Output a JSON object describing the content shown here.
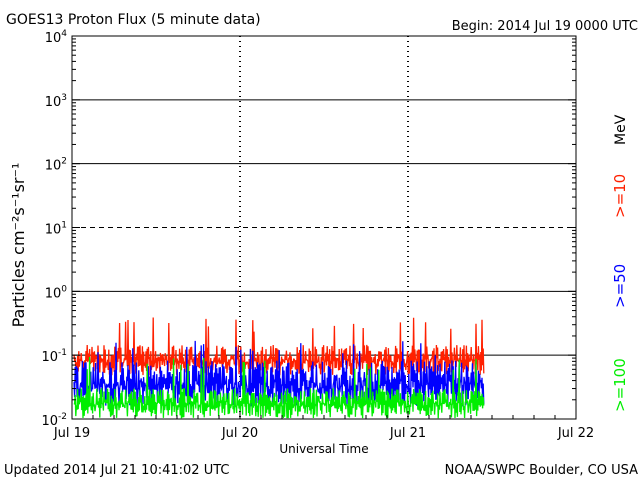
{
  "header": {
    "title": "GOES13 Proton Flux (5 minute data)",
    "begin": "Begin: 2014 Jul 19 0000 UTC"
  },
  "footer": {
    "updated": "Updated 2014 Jul 21 10:41:02 UTC",
    "source": "NOAA/SWPC Boulder, CO USA"
  },
  "chart_data": {
    "type": "line",
    "title": "GOES13 Proton Flux (5 minute data)",
    "xlabel": "Universal Time",
    "ylabel": "Particles cm⁻²s⁻¹sr⁻¹",
    "yscale": "log",
    "ylim": [
      0.01,
      10000
    ],
    "y_ticks": [
      {
        "value": 0.01,
        "base": "10",
        "exp": "-2"
      },
      {
        "value": 0.1,
        "base": "10",
        "exp": "-1"
      },
      {
        "value": 1,
        "base": "10",
        "exp": "0"
      },
      {
        "value": 10,
        "base": "10",
        "exp": "1"
      },
      {
        "value": 100,
        "base": "10",
        "exp": "2"
      },
      {
        "value": 1000,
        "base": "10",
        "exp": "3"
      },
      {
        "value": 10000,
        "base": "10",
        "exp": "4"
      }
    ],
    "x_ticks": [
      "Jul 19",
      "Jul 20",
      "Jul 21",
      "Jul 22"
    ],
    "x_range_days": [
      0,
      3
    ],
    "data_end_day": 2.45,
    "threshold_lines": [
      {
        "value": 0.1,
        "style": "solid"
      },
      {
        "value": 1,
        "style": "solid"
      },
      {
        "value": 10,
        "style": "dashed"
      },
      {
        "value": 100,
        "style": "solid"
      },
      {
        "value": 1000,
        "style": "solid"
      }
    ],
    "legend_unit": "MeV",
    "series": [
      {
        "name": ">=10",
        "color": "#ff2000",
        "base": 0.09,
        "spread": 0.6,
        "spike": 0.33
      },
      {
        "name": ">=50",
        "color": "#0000ff",
        "base": 0.04,
        "spread": 0.9,
        "spike": 0.14
      },
      {
        "name": ">=100",
        "color": "#00ee00",
        "base": 0.019,
        "spread": 0.6,
        "spike": 0.08
      }
    ]
  }
}
